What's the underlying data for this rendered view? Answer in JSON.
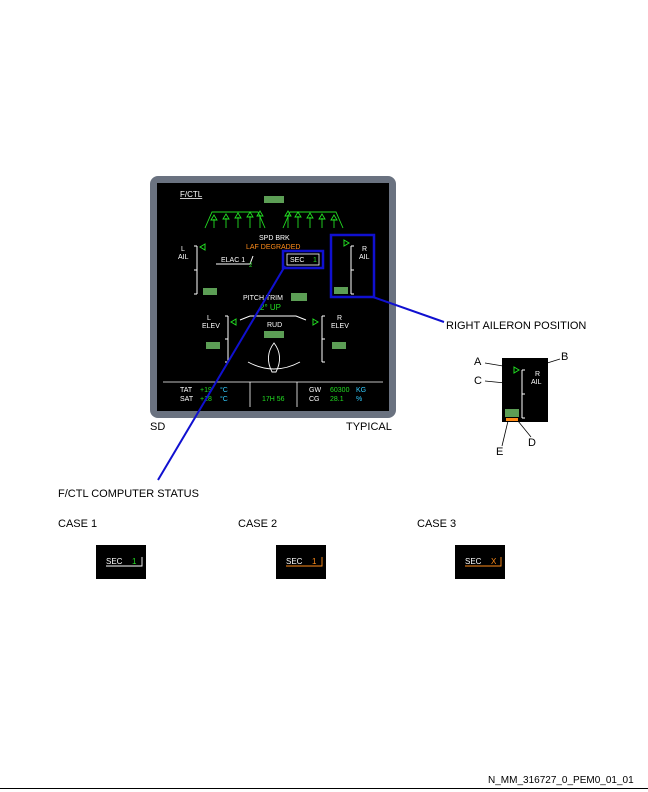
{
  "screen": {
    "page_title": "F/CTL",
    "spd_brk_label": "SPD BRK",
    "alert_text": "LAF DEGRADED",
    "l_ail_label": [
      "L",
      "AIL"
    ],
    "r_ail_label": [
      "R",
      "AIL"
    ],
    "elac_label": "ELAC 1",
    "elac_value": "2",
    "sec_label": "SEC",
    "sec_value": "1",
    "pitch_trim_label": "PITCH TRIM",
    "pitch_trim_value": "2° UP",
    "l_elev_label": [
      "L",
      "ELEV"
    ],
    "r_elev_label": [
      "R",
      "ELEV"
    ],
    "rud_label": "RUD",
    "tat_label": "TAT",
    "tat_value": "+19",
    "tat_unit": "°C",
    "sat_label": "SAT",
    "sat_value": "+18",
    "sat_unit": "°C",
    "time_value": "17H 56",
    "gw_label": "GW",
    "gw_value": "60300",
    "gw_unit": "KG",
    "cg_label": "CG",
    "cg_value": "28.1",
    "cg_unit": "%"
  },
  "labels": {
    "sd": "SD",
    "typical": "TYPICAL",
    "right_aileron_position": "RIGHT AILERON POSITION",
    "computer_status": "F/CTL COMPUTER STATUS",
    "case1": "CASE 1",
    "case2": "CASE 2",
    "case3": "CASE 3",
    "a": "A",
    "b": "B",
    "c": "C",
    "d": "D",
    "e": "E",
    "ref": "N_MM_316727_0_PEM0_01_01"
  },
  "zoom": {
    "r_ail_label": [
      "R",
      "AIL"
    ]
  },
  "cases": [
    {
      "label": "SEC",
      "value": "1",
      "value_color": "#22dd22",
      "box_color": "#ffffff"
    },
    {
      "label": "SEC",
      "value": "1",
      "value_color": "#ff8c1a",
      "box_color": "#ff8c1a"
    },
    {
      "label": "SEC",
      "value": "X",
      "value_color": "#ff8c1a",
      "box_color": "#ff8c1a"
    }
  ],
  "colors": {
    "ecam_green": "#22dd22",
    "ecam_amber": "#ff8c1a",
    "ecam_cyan": "#33ccff",
    "highlight_blue": "#1010d0",
    "bezel": "#6a7280"
  }
}
